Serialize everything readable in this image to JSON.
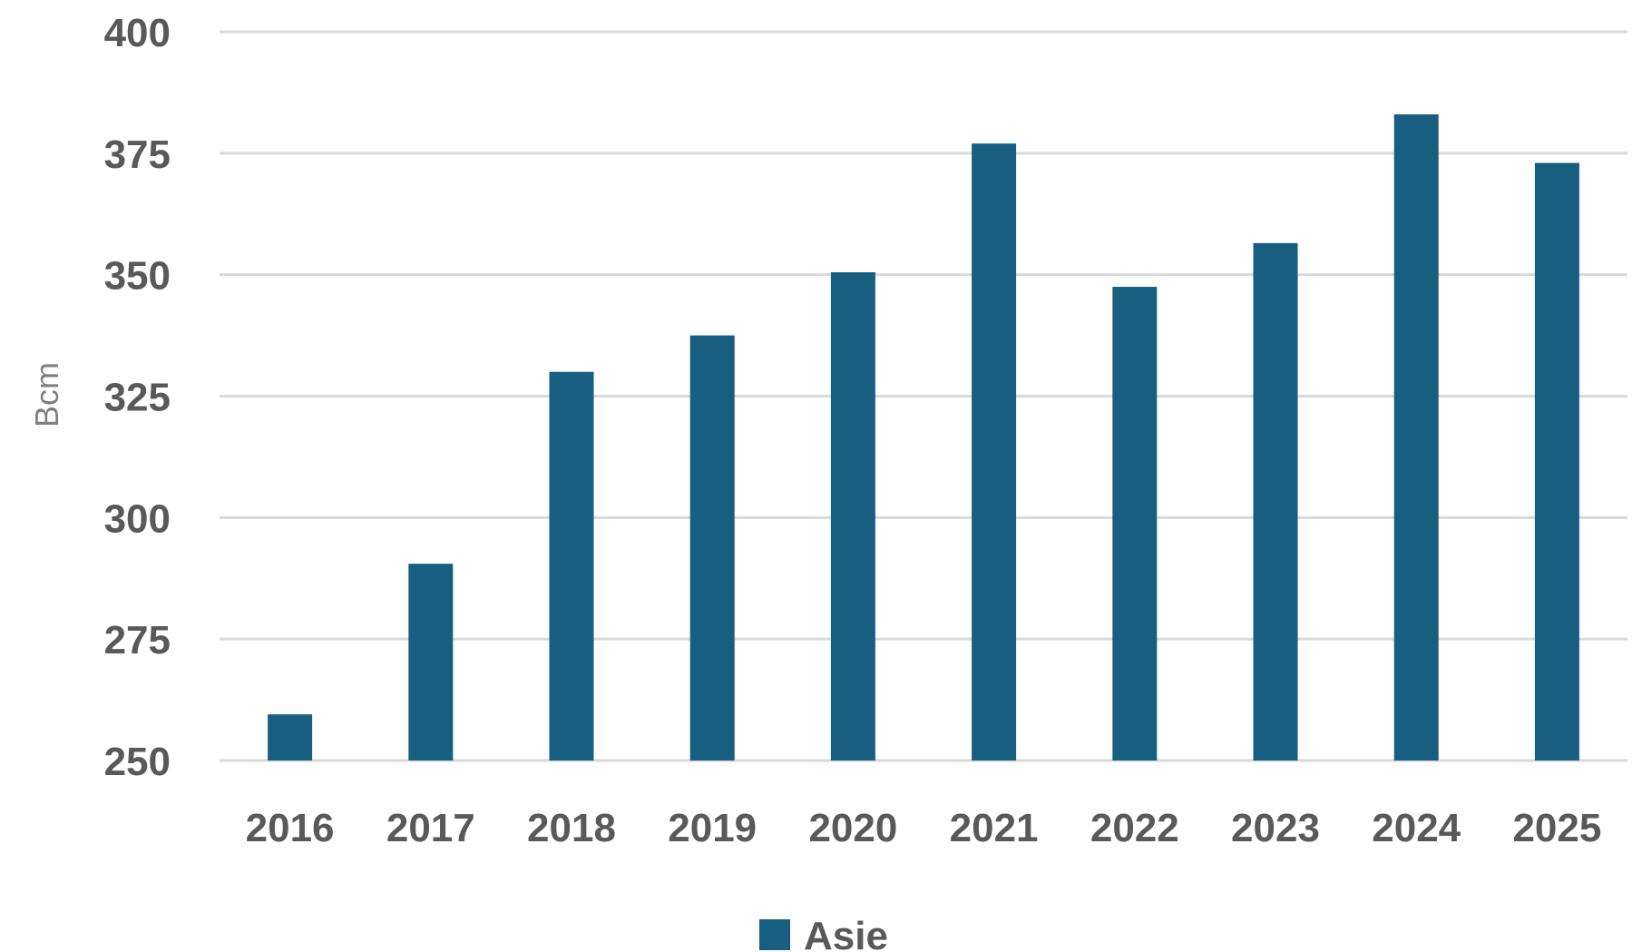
{
  "chart_data": {
    "type": "bar",
    "categories": [
      "2016",
      "2017",
      "2018",
      "2019",
      "2020",
      "2021",
      "2022",
      "2023",
      "2024",
      "2025"
    ],
    "series": [
      {
        "name": "Asie",
        "values": [
          259.5,
          290.5,
          330,
          337.5,
          350.5,
          377,
          347.5,
          356.5,
          383,
          373
        ],
        "color": "#175e80"
      }
    ],
    "title": "",
    "xlabel": "",
    "ylabel": "Bcm",
    "ylim": [
      250,
      400
    ],
    "yticks": [
      250,
      275,
      300,
      325,
      350,
      375,
      400
    ],
    "grid": true,
    "legend": "bottom"
  }
}
